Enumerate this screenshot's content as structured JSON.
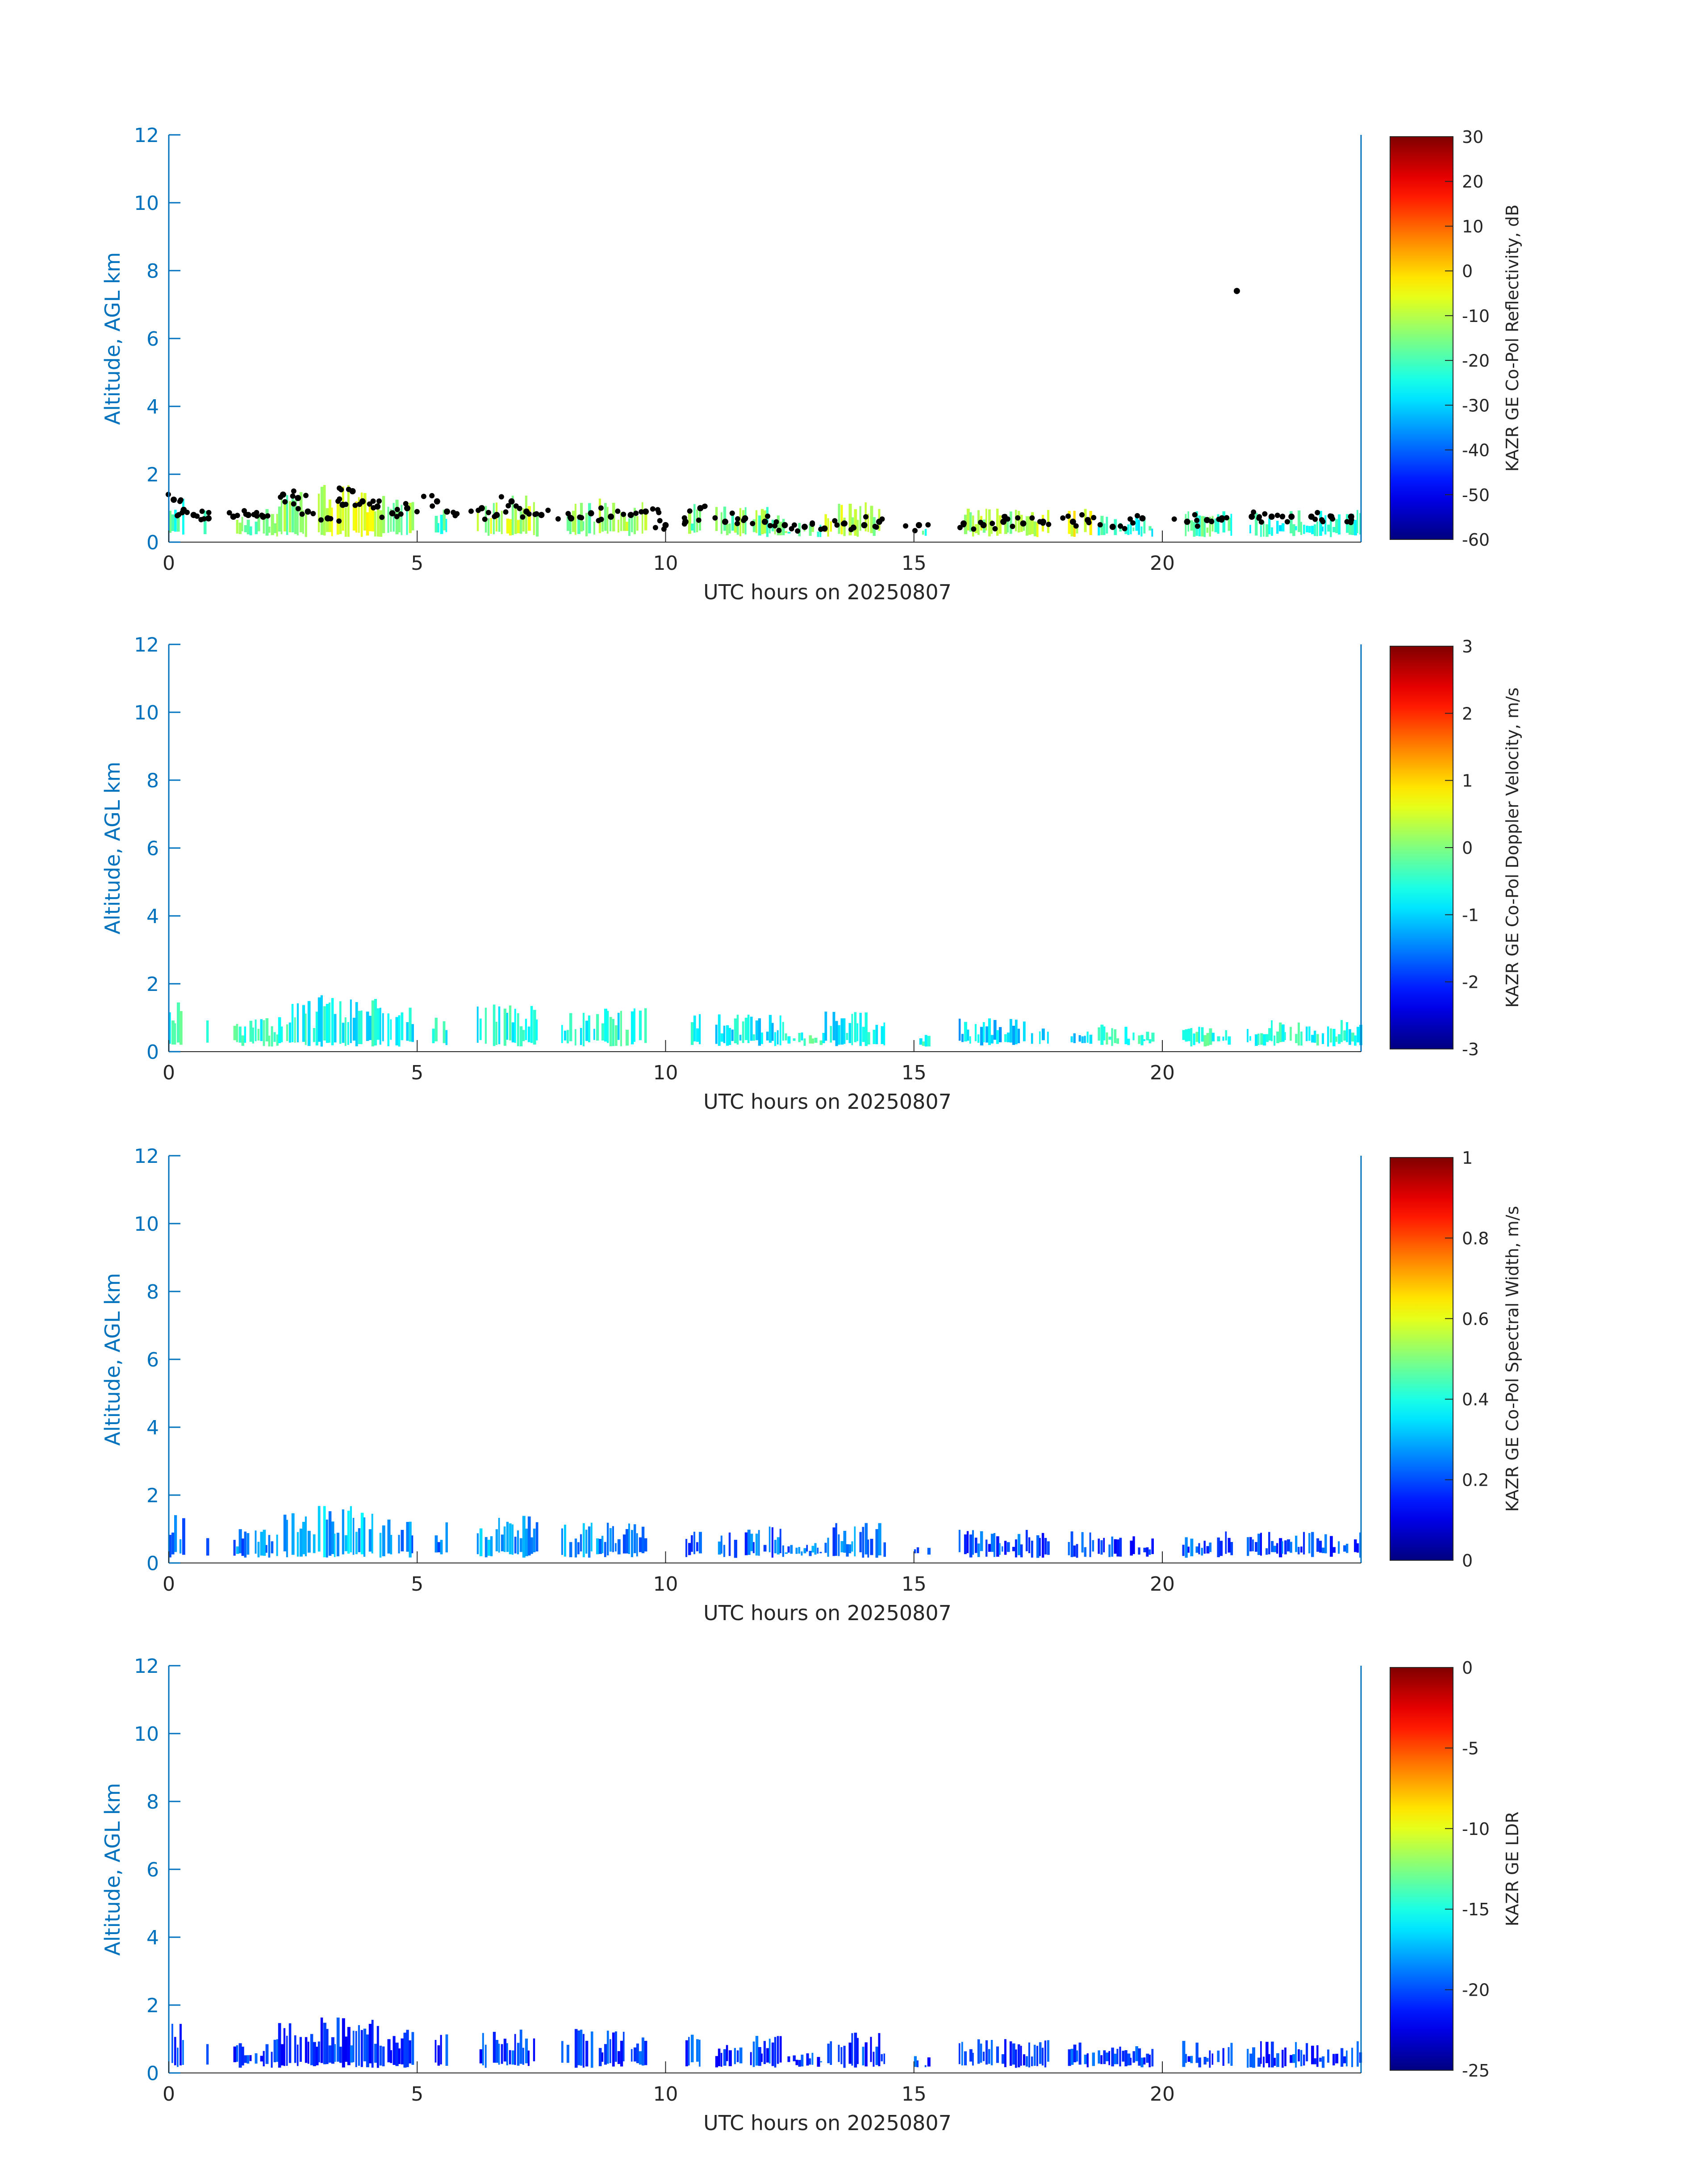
{
  "x_tick_labels": [
    "0",
    "5",
    "10",
    "15",
    "20"
  ],
  "y_tick_labels": [
    "0",
    "2",
    "4",
    "6",
    "8",
    "10",
    "12"
  ],
  "axis_color": "#0072BD",
  "colormap": "jet",
  "chart_data": [
    {
      "type": "heatmap",
      "xlabel": "UTC hours on 20250807",
      "ylabel": "Altitude, AGL km",
      "xlim": [
        0,
        24
      ],
      "ylim": [
        0,
        12
      ],
      "xticks": [
        0,
        5,
        10,
        15,
        20
      ],
      "yticks": [
        0,
        2,
        4,
        6,
        8,
        10,
        12
      ],
      "colorbar": {
        "label": "KAZR GE Co-Pol Reflectivity, dB",
        "range": [
          -60,
          30
        ],
        "ticks": [
          30,
          20,
          10,
          0,
          -10,
          -20,
          -30,
          -40,
          -50,
          -60
        ],
        "tick_labels": [
          "30",
          "20",
          "10",
          "0",
          "-10",
          "-20",
          "-30",
          "-40",
          "-50",
          "-60"
        ]
      },
      "overlay_markers": {
        "color": "#000000",
        "description": "cloud base points"
      },
      "cloud_segments": [
        {
          "start": 0.0,
          "end": 0.3,
          "top": 1.5,
          "level": 0.42
        },
        {
          "start": 0.7,
          "end": 0.8,
          "top": 1.0,
          "level": 0.45
        },
        {
          "start": 1.3,
          "end": 2.2,
          "top": 1.0,
          "level": 0.48
        },
        {
          "start": 2.2,
          "end": 3.0,
          "top": 1.5,
          "level": 0.52
        },
        {
          "start": 3.0,
          "end": 4.3,
          "top": 1.7,
          "level": 0.58
        },
        {
          "start": 4.4,
          "end": 4.9,
          "top": 1.3,
          "level": 0.5
        },
        {
          "start": 5.3,
          "end": 5.6,
          "top": 1.2,
          "level": 0.45
        },
        {
          "start": 6.2,
          "end": 7.4,
          "top": 1.4,
          "level": 0.55
        },
        {
          "start": 7.9,
          "end": 9.6,
          "top": 1.3,
          "level": 0.52
        },
        {
          "start": 10.4,
          "end": 10.7,
          "top": 1.2,
          "level": 0.48
        },
        {
          "start": 11.0,
          "end": 12.4,
          "top": 1.1,
          "level": 0.5
        },
        {
          "start": 12.4,
          "end": 13.2,
          "top": 0.6,
          "level": 0.48
        },
        {
          "start": 13.2,
          "end": 14.4,
          "top": 1.2,
          "level": 0.55
        },
        {
          "start": 15.0,
          "end": 15.3,
          "top": 0.5,
          "level": 0.45
        },
        {
          "start": 15.9,
          "end": 17.7,
          "top": 1.0,
          "level": 0.55
        },
        {
          "start": 18.1,
          "end": 18.6,
          "top": 1.0,
          "level": 0.6
        },
        {
          "start": 18.7,
          "end": 19.8,
          "top": 0.8,
          "level": 0.4
        },
        {
          "start": 20.4,
          "end": 21.4,
          "top": 0.95,
          "level": 0.45
        },
        {
          "start": 21.7,
          "end": 24.0,
          "top": 0.95,
          "level": 0.4
        }
      ],
      "overlay_points": [
        {
          "x": 0.1,
          "y": 1.25
        },
        {
          "x": 0.3,
          "y": 0.95
        },
        {
          "x": 0.5,
          "y": 0.8
        },
        {
          "x": 0.8,
          "y": 0.7
        },
        {
          "x": 1.3,
          "y": 0.75
        },
        {
          "x": 1.6,
          "y": 0.8
        },
        {
          "x": 1.9,
          "y": 0.75
        },
        {
          "x": 2.3,
          "y": 1.4
        },
        {
          "x": 2.6,
          "y": 1.3
        },
        {
          "x": 2.8,
          "y": 0.9
        },
        {
          "x": 3.2,
          "y": 0.7
        },
        {
          "x": 3.5,
          "y": 1.1
        },
        {
          "x": 3.7,
          "y": 1.5
        },
        {
          "x": 3.9,
          "y": 1.2
        },
        {
          "x": 4.2,
          "y": 1.05
        },
        {
          "x": 4.5,
          "y": 0.85
        },
        {
          "x": 4.8,
          "y": 1.0
        },
        {
          "x": 5.4,
          "y": 1.2
        },
        {
          "x": 5.6,
          "y": 0.9
        },
        {
          "x": 6.3,
          "y": 1.0
        },
        {
          "x": 6.6,
          "y": 0.8
        },
        {
          "x": 6.9,
          "y": 1.2
        },
        {
          "x": 7.2,
          "y": 0.9
        },
        {
          "x": 7.5,
          "y": 0.8
        },
        {
          "x": 8.1,
          "y": 0.7
        },
        {
          "x": 8.5,
          "y": 0.85
        },
        {
          "x": 8.9,
          "y": 0.75
        },
        {
          "x": 9.3,
          "y": 0.8
        },
        {
          "x": 9.6,
          "y": 0.9
        },
        {
          "x": 10.0,
          "y": 0.5
        },
        {
          "x": 10.4,
          "y": 0.6
        },
        {
          "x": 10.7,
          "y": 1.0
        },
        {
          "x": 11.2,
          "y": 0.6
        },
        {
          "x": 11.6,
          "y": 0.7
        },
        {
          "x": 12.0,
          "y": 0.6
        },
        {
          "x": 12.4,
          "y": 0.5
        },
        {
          "x": 12.8,
          "y": 0.45
        },
        {
          "x": 13.2,
          "y": 0.4
        },
        {
          "x": 13.6,
          "y": 0.55
        },
        {
          "x": 14.0,
          "y": 0.5
        },
        {
          "x": 14.3,
          "y": 0.6
        },
        {
          "x": 15.1,
          "y": 0.5
        },
        {
          "x": 16.0,
          "y": 0.55
        },
        {
          "x": 16.4,
          "y": 0.5
        },
        {
          "x": 16.8,
          "y": 0.6
        },
        {
          "x": 17.2,
          "y": 0.55
        },
        {
          "x": 17.6,
          "y": 0.6
        },
        {
          "x": 18.2,
          "y": 0.6
        },
        {
          "x": 18.5,
          "y": 0.65
        },
        {
          "x": 19.0,
          "y": 0.45
        },
        {
          "x": 19.6,
          "y": 0.7
        },
        {
          "x": 20.5,
          "y": 0.6
        },
        {
          "x": 20.9,
          "y": 0.65
        },
        {
          "x": 21.2,
          "y": 0.7
        },
        {
          "x": 21.5,
          "y": 7.4
        },
        {
          "x": 21.8,
          "y": 0.75
        },
        {
          "x": 22.2,
          "y": 0.75
        },
        {
          "x": 22.6,
          "y": 0.75
        },
        {
          "x": 23.0,
          "y": 0.75
        },
        {
          "x": 23.4,
          "y": 0.75
        },
        {
          "x": 23.8,
          "y": 0.75
        }
      ]
    },
    {
      "type": "heatmap",
      "xlabel": "UTC hours on 20250807",
      "ylabel": "Altitude, AGL km",
      "xlim": [
        0,
        24
      ],
      "ylim": [
        0,
        12
      ],
      "xticks": [
        0,
        5,
        10,
        15,
        20
      ],
      "yticks": [
        0,
        2,
        4,
        6,
        8,
        10,
        12
      ],
      "colorbar": {
        "label": "KAZR GE Co-Pol Doppler Velocity, m/s",
        "range": [
          -3,
          3
        ],
        "ticks": [
          3,
          2,
          1,
          0,
          -1,
          -2,
          -3
        ],
        "tick_labels": [
          "3",
          "2",
          "1",
          "0",
          "-1",
          "-2",
          "-3"
        ]
      },
      "cloud_segments": [
        {
          "start": 0.0,
          "end": 0.3,
          "top": 1.5,
          "level": 0.42
        },
        {
          "start": 0.7,
          "end": 0.8,
          "top": 1.0,
          "level": 0.42
        },
        {
          "start": 1.3,
          "end": 2.2,
          "top": 1.0,
          "level": 0.42
        },
        {
          "start": 2.2,
          "end": 3.0,
          "top": 1.5,
          "level": 0.4
        },
        {
          "start": 3.0,
          "end": 4.3,
          "top": 1.7,
          "level": 0.38
        },
        {
          "start": 4.4,
          "end": 4.9,
          "top": 1.3,
          "level": 0.38
        },
        {
          "start": 5.3,
          "end": 5.6,
          "top": 1.2,
          "level": 0.38
        },
        {
          "start": 6.2,
          "end": 7.4,
          "top": 1.4,
          "level": 0.4
        },
        {
          "start": 7.9,
          "end": 9.6,
          "top": 1.3,
          "level": 0.4
        },
        {
          "start": 10.4,
          "end": 10.7,
          "top": 1.2,
          "level": 0.38
        },
        {
          "start": 11.0,
          "end": 12.4,
          "top": 1.1,
          "level": 0.36
        },
        {
          "start": 12.4,
          "end": 13.2,
          "top": 0.6,
          "level": 0.42
        },
        {
          "start": 13.2,
          "end": 14.4,
          "top": 1.2,
          "level": 0.36
        },
        {
          "start": 15.0,
          "end": 15.3,
          "top": 0.5,
          "level": 0.4
        },
        {
          "start": 15.9,
          "end": 17.7,
          "top": 1.0,
          "level": 0.33
        },
        {
          "start": 18.1,
          "end": 18.6,
          "top": 1.0,
          "level": 0.32
        },
        {
          "start": 18.7,
          "end": 19.8,
          "top": 0.8,
          "level": 0.42
        },
        {
          "start": 20.4,
          "end": 21.4,
          "top": 0.95,
          "level": 0.42
        },
        {
          "start": 21.7,
          "end": 24.0,
          "top": 0.95,
          "level": 0.4
        }
      ]
    },
    {
      "type": "heatmap",
      "xlabel": "UTC hours on 20250807",
      "ylabel": "Altitude, AGL km",
      "xlim": [
        0,
        24
      ],
      "ylim": [
        0,
        12
      ],
      "xticks": [
        0,
        5,
        10,
        15,
        20
      ],
      "yticks": [
        0,
        2,
        4,
        6,
        8,
        10,
        12
      ],
      "colorbar": {
        "label": "KAZR GE Co-Pol Spectral Width, m/s",
        "range": [
          0,
          1
        ],
        "ticks": [
          1,
          0.8,
          0.6,
          0.4,
          0.2,
          0
        ],
        "tick_labels": [
          "1",
          "0.8",
          "0.6",
          "0.4",
          "0.2",
          "0"
        ]
      },
      "cloud_segments": [
        {
          "start": 0.0,
          "end": 0.3,
          "top": 1.5,
          "level": 0.22
        },
        {
          "start": 0.7,
          "end": 0.8,
          "top": 1.0,
          "level": 0.22
        },
        {
          "start": 1.3,
          "end": 2.2,
          "top": 1.0,
          "level": 0.25
        },
        {
          "start": 2.2,
          "end": 3.0,
          "top": 1.5,
          "level": 0.28
        },
        {
          "start": 3.0,
          "end": 4.3,
          "top": 1.7,
          "level": 0.3
        },
        {
          "start": 4.4,
          "end": 4.9,
          "top": 1.3,
          "level": 0.26
        },
        {
          "start": 5.3,
          "end": 5.6,
          "top": 1.2,
          "level": 0.24
        },
        {
          "start": 6.2,
          "end": 7.4,
          "top": 1.4,
          "level": 0.28
        },
        {
          "start": 7.9,
          "end": 9.6,
          "top": 1.3,
          "level": 0.26
        },
        {
          "start": 10.4,
          "end": 10.7,
          "top": 1.2,
          "level": 0.22
        },
        {
          "start": 11.0,
          "end": 12.4,
          "top": 1.1,
          "level": 0.22
        },
        {
          "start": 12.4,
          "end": 13.2,
          "top": 0.6,
          "level": 0.24
        },
        {
          "start": 13.2,
          "end": 14.4,
          "top": 1.2,
          "level": 0.24
        },
        {
          "start": 15.0,
          "end": 15.3,
          "top": 0.5,
          "level": 0.22
        },
        {
          "start": 15.9,
          "end": 17.7,
          "top": 1.0,
          "level": 0.2
        },
        {
          "start": 18.1,
          "end": 18.6,
          "top": 1.0,
          "level": 0.2
        },
        {
          "start": 18.7,
          "end": 19.8,
          "top": 0.8,
          "level": 0.18
        },
        {
          "start": 20.4,
          "end": 21.4,
          "top": 0.95,
          "level": 0.2
        },
        {
          "start": 21.7,
          "end": 24.0,
          "top": 0.95,
          "level": 0.2
        }
      ]
    },
    {
      "type": "heatmap",
      "xlabel": "UTC hours on 20250807",
      "ylabel": "Altitude, AGL km",
      "xlim": [
        0,
        24
      ],
      "ylim": [
        0,
        12
      ],
      "xticks": [
        0,
        5,
        10,
        15,
        20
      ],
      "yticks": [
        0,
        2,
        4,
        6,
        8,
        10,
        12
      ],
      "colorbar": {
        "label": "KAZR GE LDR",
        "range": [
          -25,
          0
        ],
        "ticks": [
          0,
          -5,
          -10,
          -15,
          -20,
          -25
        ],
        "tick_labels": [
          "0",
          "-5",
          "-10",
          "-15",
          "-20",
          "-25"
        ]
      },
      "cloud_segments": [
        {
          "start": 0.0,
          "end": 0.3,
          "top": 1.5,
          "level": 0.18
        },
        {
          "start": 0.7,
          "end": 0.8,
          "top": 1.0,
          "level": 0.18
        },
        {
          "start": 1.3,
          "end": 2.2,
          "top": 1.0,
          "level": 0.18
        },
        {
          "start": 2.2,
          "end": 3.0,
          "top": 1.5,
          "level": 0.18
        },
        {
          "start": 3.0,
          "end": 4.3,
          "top": 1.7,
          "level": 0.18
        },
        {
          "start": 4.4,
          "end": 4.9,
          "top": 1.3,
          "level": 0.18
        },
        {
          "start": 5.3,
          "end": 5.6,
          "top": 1.2,
          "level": 0.18
        },
        {
          "start": 6.2,
          "end": 7.4,
          "top": 1.4,
          "level": 0.18
        },
        {
          "start": 7.9,
          "end": 9.6,
          "top": 1.3,
          "level": 0.18
        },
        {
          "start": 10.4,
          "end": 10.7,
          "top": 1.2,
          "level": 0.18
        },
        {
          "start": 11.0,
          "end": 12.4,
          "top": 1.1,
          "level": 0.18
        },
        {
          "start": 12.4,
          "end": 13.2,
          "top": 0.6,
          "level": 0.18
        },
        {
          "start": 13.2,
          "end": 14.4,
          "top": 1.2,
          "level": 0.18
        },
        {
          "start": 15.0,
          "end": 15.3,
          "top": 0.5,
          "level": 0.18
        },
        {
          "start": 15.9,
          "end": 17.7,
          "top": 1.0,
          "level": 0.18
        },
        {
          "start": 18.1,
          "end": 18.6,
          "top": 1.0,
          "level": 0.18
        },
        {
          "start": 18.7,
          "end": 19.8,
          "top": 0.8,
          "level": 0.18
        },
        {
          "start": 20.4,
          "end": 21.4,
          "top": 0.95,
          "level": 0.18
        },
        {
          "start": 21.7,
          "end": 24.0,
          "top": 0.95,
          "level": 0.18
        }
      ]
    }
  ]
}
